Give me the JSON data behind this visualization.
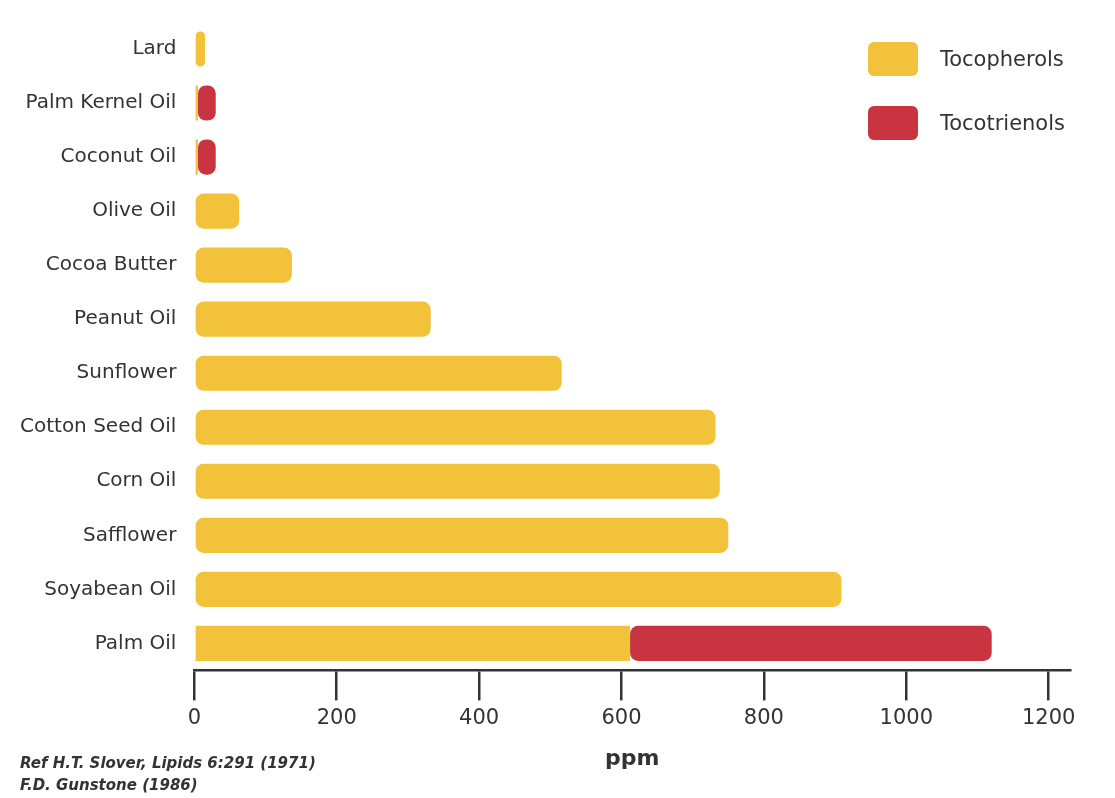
{
  "chart_data": {
    "type": "bar",
    "orientation": "horizontal",
    "stacked": true,
    "categories": [
      "Lard",
      "Palm Kernel Oil",
      "Coconut Oil",
      "Olive Oil",
      "Cocoa Butter",
      "Peanut Oil",
      "Sunflower",
      "Cotton Seed Oil",
      "Corn Oil",
      "Safflower",
      "Soyabean Oil",
      "Palm Oil"
    ],
    "series": [
      {
        "name": "Tocopherols",
        "color": "#f2c23a",
        "values": [
          15,
          5,
          5,
          63,
          137,
          332,
          516,
          732,
          738,
          750,
          909,
          612
        ]
      },
      {
        "name": "Tocotrienols",
        "color": "#c8343f",
        "values": [
          null,
          25,
          25,
          null,
          null,
          null,
          null,
          null,
          null,
          null,
          null,
          508
        ]
      }
    ],
    "xlabel": "ppm",
    "xlim": [
      0,
      1230
    ],
    "xticks": [
      0,
      200,
      400,
      600,
      800,
      1000,
      1200
    ],
    "legend": "top right",
    "grid": false,
    "annotations": [
      "Ref H.T. Slover, Lipids 6:291 (1971)",
      "F.D. Gunstone (1986)"
    ]
  }
}
